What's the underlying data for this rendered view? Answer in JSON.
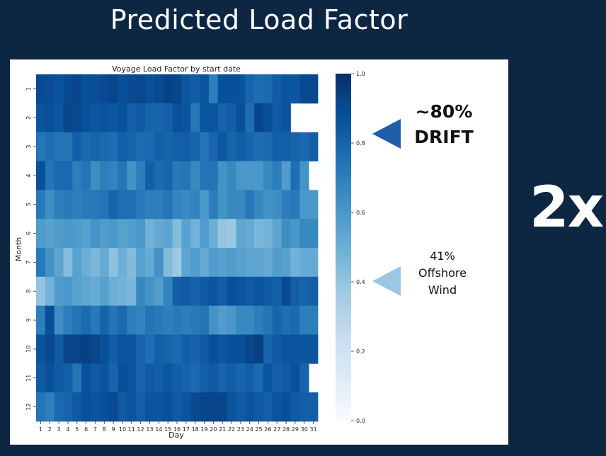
{
  "slide": {
    "title": "Predicted Load Factor",
    "multiplier": "2x"
  },
  "callouts": {
    "drift_value": "~80%",
    "drift_label": "DRIFT",
    "wind_value": "41%",
    "wind_line1": "Offshore",
    "wind_line2": "Wind",
    "drift_arrow_color": "#1f5fa8",
    "wind_arrow_color": "#9cc7e2"
  },
  "chart_data": {
    "type": "heatmap",
    "title": "Voyage Load Factor by start date",
    "xlabel": "Day",
    "ylabel": "Month",
    "x": [
      1,
      2,
      3,
      4,
      5,
      6,
      7,
      8,
      9,
      10,
      11,
      12,
      13,
      14,
      15,
      16,
      17,
      18,
      19,
      20,
      21,
      22,
      23,
      24,
      25,
      26,
      27,
      28,
      29,
      30,
      31
    ],
    "y": [
      1,
      2,
      3,
      4,
      5,
      6,
      7,
      8,
      9,
      10,
      11,
      12
    ],
    "colorbar": {
      "min": 0.0,
      "max": 1.0,
      "ticks": [
        "0.0",
        "0.2",
        "0.4",
        "0.6",
        "0.8",
        "1.0"
      ],
      "colormap": "Blues"
    },
    "values": [
      [
        0.9,
        0.89,
        0.87,
        0.9,
        0.92,
        0.88,
        0.89,
        0.9,
        0.92,
        0.88,
        0.9,
        0.91,
        0.88,
        0.9,
        0.93,
        0.92,
        0.85,
        0.83,
        0.86,
        0.7,
        0.88,
        0.88,
        0.87,
        0.8,
        0.76,
        0.78,
        0.83,
        0.86,
        0.85,
        0.9,
        0.91
      ],
      [
        0.86,
        0.88,
        0.85,
        0.92,
        0.9,
        0.88,
        0.85,
        0.87,
        0.85,
        0.88,
        0.82,
        0.84,
        0.8,
        0.8,
        0.82,
        0.88,
        0.86,
        0.73,
        0.86,
        0.86,
        0.8,
        0.82,
        0.88,
        0.76,
        0.92,
        0.88,
        0.84,
        0.86,
        null,
        null,
        null
      ],
      [
        0.74,
        0.76,
        0.74,
        0.74,
        0.82,
        0.78,
        0.8,
        0.78,
        0.76,
        0.82,
        0.8,
        0.77,
        0.78,
        0.82,
        0.8,
        0.82,
        0.82,
        0.8,
        0.74,
        0.8,
        0.85,
        0.8,
        0.82,
        0.8,
        0.76,
        0.78,
        0.82,
        0.82,
        0.8,
        0.78,
        0.82
      ],
      [
        0.88,
        0.74,
        0.78,
        0.78,
        0.7,
        0.74,
        0.64,
        0.7,
        0.68,
        0.74,
        0.62,
        0.7,
        0.82,
        0.78,
        0.8,
        0.72,
        0.74,
        0.66,
        0.74,
        0.74,
        0.62,
        0.66,
        0.6,
        0.6,
        0.6,
        0.66,
        0.7,
        0.58,
        0.76,
        0.62,
        null
      ],
      [
        0.72,
        0.64,
        0.7,
        0.72,
        0.7,
        0.72,
        0.72,
        0.74,
        0.8,
        0.76,
        0.76,
        0.72,
        0.7,
        0.7,
        0.74,
        0.68,
        0.66,
        0.68,
        0.6,
        0.7,
        0.62,
        0.66,
        0.66,
        0.72,
        0.66,
        0.62,
        0.64,
        0.7,
        0.72,
        0.6,
        0.6
      ],
      [
        0.58,
        0.56,
        0.58,
        0.6,
        0.58,
        0.56,
        0.62,
        0.58,
        0.6,
        0.56,
        0.58,
        0.6,
        0.48,
        0.52,
        0.54,
        0.44,
        0.56,
        0.48,
        0.58,
        0.5,
        0.4,
        0.38,
        0.54,
        0.52,
        0.46,
        0.48,
        0.54,
        0.64,
        0.6,
        0.66,
        0.66
      ],
      [
        0.72,
        0.62,
        0.54,
        0.44,
        0.56,
        0.5,
        0.46,
        0.52,
        0.42,
        0.5,
        0.44,
        0.56,
        0.52,
        0.62,
        0.44,
        0.38,
        0.54,
        0.58,
        0.52,
        0.58,
        0.56,
        0.58,
        0.56,
        0.54,
        0.54,
        0.52,
        0.58,
        0.56,
        0.48,
        0.52,
        0.52
      ],
      [
        0.4,
        0.48,
        0.58,
        0.6,
        0.56,
        0.54,
        0.52,
        0.56,
        0.5,
        0.48,
        0.46,
        0.66,
        0.62,
        0.58,
        0.68,
        0.82,
        0.84,
        0.8,
        0.84,
        0.86,
        0.82,
        0.88,
        0.86,
        0.84,
        0.86,
        0.84,
        0.82,
        0.9,
        0.82,
        0.8,
        0.82
      ],
      [
        0.7,
        0.88,
        0.64,
        0.7,
        0.74,
        0.78,
        0.72,
        0.8,
        0.74,
        0.78,
        0.7,
        0.68,
        0.74,
        0.72,
        0.7,
        0.72,
        0.7,
        0.72,
        0.74,
        0.62,
        0.58,
        0.6,
        0.66,
        0.66,
        0.7,
        0.74,
        0.8,
        0.76,
        0.78,
        0.7,
        0.7
      ],
      [
        0.86,
        0.9,
        0.84,
        0.92,
        0.92,
        0.94,
        0.92,
        0.88,
        0.82,
        0.86,
        0.86,
        0.8,
        0.76,
        0.82,
        0.8,
        0.78,
        0.82,
        0.8,
        0.84,
        0.88,
        0.86,
        0.88,
        0.88,
        0.92,
        0.94,
        0.8,
        0.84,
        0.86,
        0.86,
        0.86,
        0.86
      ],
      [
        0.84,
        0.88,
        0.84,
        0.82,
        0.74,
        0.88,
        0.84,
        0.86,
        0.8,
        0.88,
        0.86,
        0.8,
        0.84,
        0.82,
        0.86,
        0.82,
        0.8,
        0.78,
        0.82,
        0.84,
        0.8,
        0.82,
        0.8,
        0.82,
        0.78,
        0.86,
        0.82,
        0.84,
        0.88,
        0.8,
        null
      ],
      [
        0.74,
        0.7,
        0.78,
        0.8,
        0.84,
        0.88,
        0.86,
        0.88,
        0.9,
        0.84,
        0.86,
        0.82,
        0.86,
        0.86,
        0.88,
        0.84,
        0.86,
        0.9,
        0.92,
        0.92,
        0.92,
        0.86,
        0.84,
        0.86,
        0.84,
        0.82,
        0.86,
        0.88,
        0.84,
        0.82,
        0.82
      ]
    ]
  }
}
